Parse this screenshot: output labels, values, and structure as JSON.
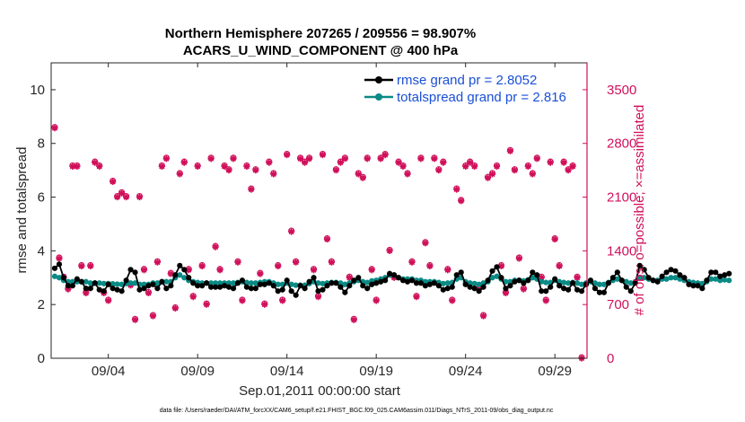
{
  "chart_data": {
    "type": "line",
    "title_line1": "Northern Hemisphere 207265 / 209556 = 98.907%",
    "title_line2": "ACARS_U_WIND_COMPONENT @ 400 hPa",
    "xlabel": "Sep.01,2011 00:00:00 start",
    "ylabel_left": "rmse and totalspread",
    "ylabel_right": "# of obs: o=possible; ×=assimilated",
    "footer": "data file: /Users/raeder/DAI/ATM_forcXX/CAM6_setup/f.e21.FHIST_BGC.f09_025.CAM6assim.011/Diags_NTrS_2011-09/obs_diag_output.nc",
    "xlim": [
      0.8,
      30.8
    ],
    "ylim_left": [
      0,
      11
    ],
    "ylim_right": [
      0,
      3850
    ],
    "x_ticks": [
      {
        "v": 4,
        "label": "09/04"
      },
      {
        "v": 9,
        "label": "09/09"
      },
      {
        "v": 14,
        "label": "09/14"
      },
      {
        "v": 19,
        "label": "09/19"
      },
      {
        "v": 24,
        "label": "09/24"
      },
      {
        "v": 29,
        "label": "09/29"
      }
    ],
    "y_ticks_left": [
      {
        "v": 0,
        "label": "0"
      },
      {
        "v": 2,
        "label": "2"
      },
      {
        "v": 4,
        "label": "4"
      },
      {
        "v": 6,
        "label": "6"
      },
      {
        "v": 8,
        "label": "8"
      },
      {
        "v": 10,
        "label": "10"
      }
    ],
    "y_ticks_right": [
      {
        "v": 0,
        "label": "0"
      },
      {
        "v": 700,
        "label": "700"
      },
      {
        "v": 1400,
        "label": "1400"
      },
      {
        "v": 2100,
        "label": "2100"
      },
      {
        "v": 2800,
        "label": "2800"
      },
      {
        "v": 3500,
        "label": "3500"
      }
    ],
    "x_start": 1.0,
    "x_step": 0.25,
    "series": [
      {
        "name": "rmse",
        "legend": "rmse grand pr = 2.8052",
        "color": "#000000",
        "values": [
          3.35,
          3.5,
          3.0,
          2.7,
          2.7,
          2.95,
          2.85,
          2.6,
          2.6,
          2.8,
          2.55,
          2.5,
          2.75,
          2.6,
          2.55,
          2.5,
          2.9,
          3.3,
          3.2,
          2.55,
          2.6,
          2.7,
          2.75,
          2.6,
          2.85,
          2.6,
          2.7,
          3.1,
          3.45,
          3.3,
          3.0,
          2.8,
          2.7,
          2.7,
          2.8,
          2.65,
          2.65,
          2.65,
          2.7,
          2.65,
          2.6,
          2.8,
          2.9,
          2.65,
          2.6,
          2.6,
          2.75,
          2.75,
          2.8,
          2.7,
          2.5,
          2.55,
          2.9,
          2.5,
          2.35,
          2.7,
          2.6,
          2.85,
          3.0,
          2.5,
          2.55,
          2.7,
          2.8,
          2.8,
          2.65,
          2.45,
          2.7,
          2.9,
          3.0,
          2.7,
          2.6,
          2.75,
          2.8,
          2.85,
          2.9,
          3.15,
          3.1,
          3.0,
          2.9,
          2.85,
          2.9,
          2.8,
          2.8,
          2.7,
          2.75,
          2.8,
          2.7,
          2.55,
          2.6,
          2.65,
          3.1,
          3.2,
          2.75,
          2.65,
          2.6,
          2.5,
          2.65,
          2.9,
          3.25,
          3.4,
          3.0,
          2.6,
          2.7,
          2.85,
          2.9,
          2.8,
          2.9,
          3.2,
          3.1,
          2.5,
          2.5,
          2.65,
          2.95,
          2.7,
          2.6,
          2.55,
          2.8,
          2.55,
          2.5,
          2.75,
          2.9,
          2.6,
          2.45,
          2.45,
          2.8,
          3.0,
          3.2,
          2.9,
          2.65,
          2.5,
          2.8,
          3.45,
          3.3,
          3.0,
          2.9,
          2.85,
          3.05,
          3.2,
          3.3,
          3.25,
          3.1,
          3.0,
          2.75,
          2.7,
          2.7,
          2.6,
          2.9,
          3.2,
          3.2,
          3.05,
          3.1,
          3.15
        ]
      },
      {
        "name": "totalspread",
        "legend": "totalspread grand pr = 2.816",
        "color": "#0a8a85",
        "values": [
          3.05,
          3.0,
          2.9,
          2.85,
          2.85,
          2.85,
          2.85,
          2.85,
          2.8,
          2.8,
          2.8,
          2.78,
          2.78,
          2.77,
          2.76,
          2.75,
          2.78,
          2.8,
          2.8,
          2.75,
          2.75,
          2.75,
          2.8,
          2.8,
          2.85,
          2.85,
          2.85,
          3.0,
          3.1,
          3.0,
          2.9,
          2.85,
          2.82,
          2.8,
          2.8,
          2.8,
          2.8,
          2.8,
          2.8,
          2.8,
          2.8,
          2.82,
          2.85,
          2.82,
          2.8,
          2.8,
          2.82,
          2.85,
          2.85,
          2.8,
          2.75,
          2.75,
          2.8,
          2.75,
          2.72,
          2.72,
          2.72,
          2.78,
          2.85,
          2.8,
          2.78,
          2.8,
          2.82,
          2.82,
          2.8,
          2.75,
          2.8,
          2.85,
          2.9,
          2.85,
          2.82,
          2.88,
          2.9,
          2.95,
          3.0,
          3.1,
          3.1,
          3.0,
          2.95,
          2.95,
          2.95,
          2.9,
          2.9,
          2.85,
          2.85,
          2.85,
          2.82,
          2.78,
          2.8,
          2.82,
          2.95,
          3.0,
          2.85,
          2.8,
          2.78,
          2.75,
          2.8,
          2.85,
          3.0,
          3.05,
          2.95,
          2.85,
          2.85,
          2.9,
          2.9,
          2.88,
          2.92,
          3.0,
          2.95,
          2.85,
          2.82,
          2.82,
          2.9,
          2.85,
          2.82,
          2.8,
          2.82,
          2.8,
          2.75,
          2.8,
          2.85,
          2.8,
          2.75,
          2.75,
          2.82,
          2.9,
          2.95,
          2.9,
          2.85,
          2.8,
          2.85,
          3.0,
          3.0,
          2.95,
          2.9,
          2.9,
          2.95,
          2.95,
          3.0,
          3.0,
          2.95,
          2.9,
          2.85,
          2.82,
          2.8,
          2.78,
          2.85,
          2.95,
          2.95,
          2.9,
          2.92,
          2.9
        ]
      }
    ],
    "obs_counts": {
      "name": "# of obs",
      "color": "#d0105a",
      "x_start": 1.0,
      "x_step": 0.25,
      "values": [
        3000,
        1300,
        1050,
        900,
        2500,
        2500,
        1200,
        850,
        1200,
        2550,
        2500,
        850,
        750,
        2300,
        2100,
        2150,
        2100,
        950,
        500,
        2100,
        1150,
        850,
        550,
        1250,
        2500,
        2600,
        1100,
        650,
        2400,
        2550,
        1150,
        800,
        2500,
        1200,
        700,
        2600,
        1450,
        1150,
        2500,
        2450,
        2600,
        1250,
        750,
        2500,
        2200,
        2450,
        1100,
        700,
        2550,
        2400,
        1200,
        750,
        2650,
        1650,
        1250,
        2600,
        2550,
        2600,
        1150,
        800,
        2650,
        1550,
        1250,
        2450,
        2550,
        2600,
        1050,
        500,
        2400,
        2350,
        2600,
        1150,
        750,
        2600,
        2650,
        1400,
        1050,
        2550,
        2500,
        2400,
        1250,
        800,
        2600,
        1500,
        1200,
        2600,
        2450,
        2550,
        1150,
        750,
        2200,
        2050,
        2500,
        2550,
        2500,
        900,
        550,
        2350,
        2400,
        2500,
        1200,
        850,
        2700,
        2450,
        1300,
        900,
        2500,
        2400,
        2600,
        1050,
        750,
        2550,
        1550,
        1200,
        2550,
        2450,
        2500,
        1050,
        0
      ]
    }
  }
}
